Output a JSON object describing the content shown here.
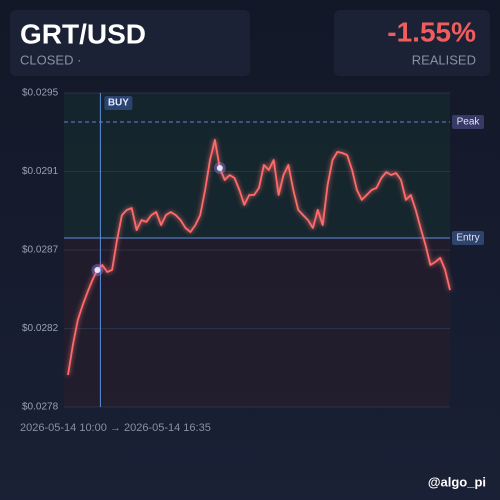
{
  "header": {
    "symbol": "GRT/USD",
    "status": "CLOSED ·",
    "pnl": "-1.55%",
    "pnl_label": "REALISED"
  },
  "footer": {
    "handle": "@algo_pi"
  },
  "chart_data": {
    "type": "line",
    "x_range_label": "2026-05-14 10:00 → 2026-05-14 16:35",
    "series": [
      {
        "color": "#ff6b6b",
        "values": [
          0.027973,
          0.028136,
          0.028271,
          0.028352,
          0.028423,
          0.028488,
          0.028542,
          0.028569,
          0.028531,
          0.028542,
          0.028704,
          0.028839,
          0.028867,
          0.028877,
          0.028758,
          0.028812,
          0.028802,
          0.028839,
          0.028856,
          0.028785,
          0.028839,
          0.028856,
          0.028839,
          0.028812,
          0.028769,
          0.028747,
          0.028785,
          0.028839,
          0.028975,
          0.029137,
          0.029246,
          0.029094,
          0.029029,
          0.029056,
          0.02904,
          0.028975,
          0.028894,
          0.028948,
          0.028948,
          0.028986,
          0.02911,
          0.029083,
          0.029137,
          0.028948,
          0.029056,
          0.02911,
          0.028975,
          0.028867,
          0.028839,
          0.028812,
          0.028769,
          0.028867,
          0.028785,
          0.029002,
          0.029137,
          0.029181,
          0.029175,
          0.029164,
          0.029083,
          0.028975,
          0.028921,
          0.028948,
          0.028975,
          0.028986,
          0.02904,
          0.029072,
          0.029056,
          0.029067,
          0.029029,
          0.028921,
          0.028948,
          0.028867,
          0.028769,
          0.028677,
          0.028569,
          0.028585,
          0.028607,
          0.028542,
          0.028433
        ]
      }
    ],
    "ylim": [
      0.0278,
      0.0295
    ],
    "yticks": [
      {
        "value": 0.0278,
        "label": "$0.0278"
      },
      {
        "value": 0.028225,
        "label": "$0.0282"
      },
      {
        "value": 0.02865,
        "label": "$0.0287"
      },
      {
        "value": 0.029075,
        "label": "$0.0291"
      },
      {
        "value": 0.0295,
        "label": "$0.0295"
      }
    ],
    "grid": true,
    "hlines": [
      {
        "label": "Peak",
        "value": 0.029343,
        "color": "#7b78d8",
        "dashed": true
      },
      {
        "label": "Entry",
        "value": 0.028715,
        "color": "#5b8fe0",
        "dashed": false
      }
    ],
    "annotations": [
      {
        "text": "BUY",
        "index": 6
      }
    ],
    "markers": [
      6,
      31
    ]
  }
}
